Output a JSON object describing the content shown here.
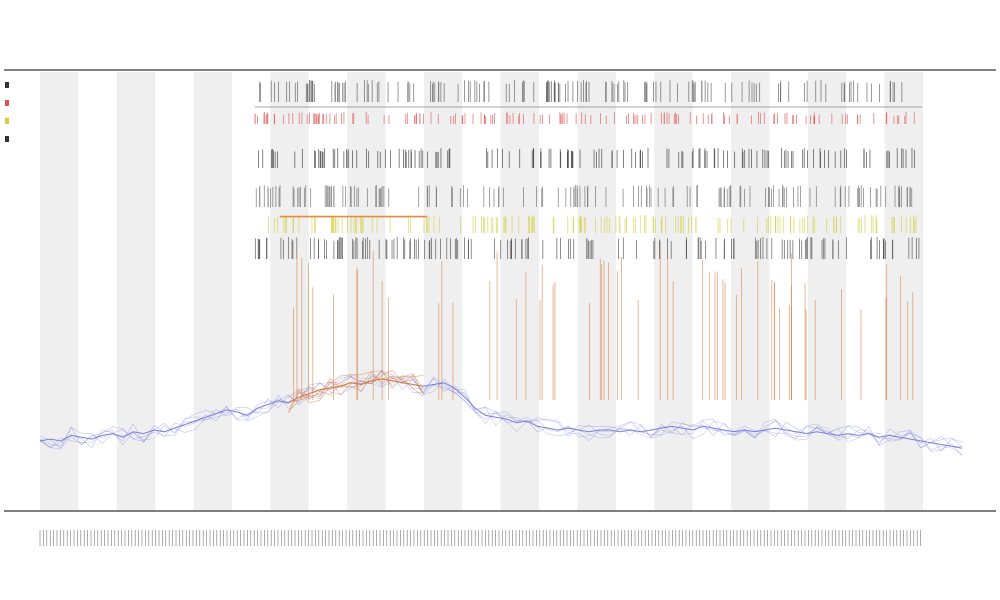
{
  "chart_data": {
    "type": "line",
    "title": "",
    "subtitle": "",
    "xlabel": "",
    "ylabel": "",
    "grid": false,
    "legend": "top-left",
    "band_count": 23,
    "band_color": "#efefef",
    "colors": {
      "baseline": "#7b7fe0",
      "elevated": "#d9824a",
      "segment": "#e8893c",
      "track_dark": "#333333",
      "track_red": "#e05050",
      "track_yellow": "#d4cf40",
      "axis": "#333333"
    },
    "series": [
      {
        "key": "signal",
        "x_range": [
          0,
          1
        ],
        "values": [
          0.16,
          0.17,
          0.16,
          0.19,
          0.18,
          0.17,
          0.19,
          0.2,
          0.18,
          0.21,
          0.2,
          0.22,
          0.21,
          0.23,
          0.25,
          0.27,
          0.29,
          0.31,
          0.33,
          0.32,
          0.3,
          0.34,
          0.36,
          0.38,
          0.37,
          0.4,
          0.42,
          0.44,
          0.45,
          0.46,
          0.48,
          0.47,
          0.49,
          0.5,
          0.49,
          0.48,
          0.47,
          0.46,
          0.47,
          0.48,
          0.45,
          0.4,
          0.34,
          0.3,
          0.29,
          0.28,
          0.26,
          0.27,
          0.24,
          0.23,
          0.22,
          0.23,
          0.22,
          0.21,
          0.22,
          0.22,
          0.21,
          0.22,
          0.21,
          0.22,
          0.23,
          0.24,
          0.23,
          0.22,
          0.24,
          0.23,
          0.22,
          0.21,
          0.22,
          0.21,
          0.22,
          0.23,
          0.22,
          0.21,
          0.2,
          0.21,
          0.2,
          0.19,
          0.2,
          0.19,
          0.2,
          0.18,
          0.19,
          0.18,
          0.17,
          0.16,
          0.15,
          0.14,
          0.13,
          0.12
        ]
      }
    ],
    "elevated_range": [
      0.26,
      0.42
    ],
    "segment_range": [
      0.26,
      0.42
    ],
    "segment_level": 0.67
  }
}
